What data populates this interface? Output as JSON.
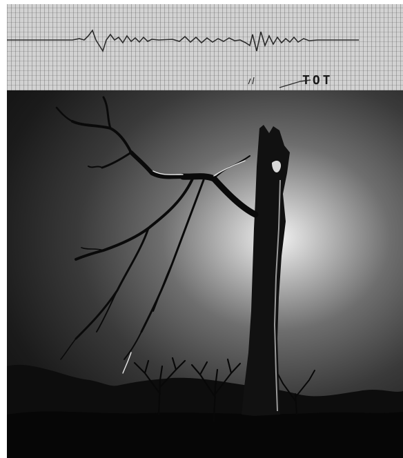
{
  "ecg_strip": {
    "label": "TOT"
  },
  "photo": {
    "subject_icon": "dead-tree-icon"
  }
}
